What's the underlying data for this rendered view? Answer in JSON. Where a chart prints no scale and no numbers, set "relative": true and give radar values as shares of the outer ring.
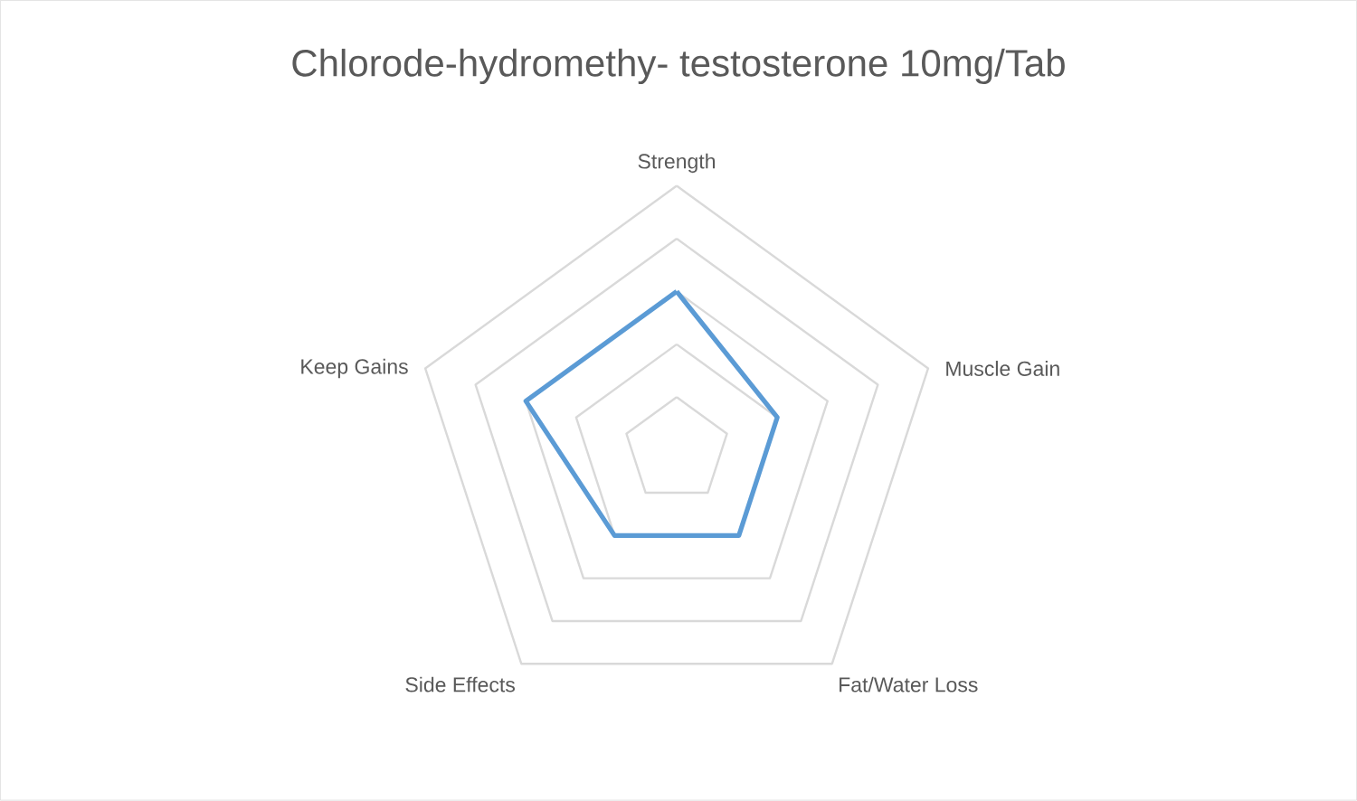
{
  "chart_data": {
    "type": "radar",
    "title": "Chlorode-hydromethy- testosterone 10mg/Tab",
    "categories": [
      "Strength",
      "Muscle Gain",
      "Fat/Water Loss",
      "Side Effects",
      "Keep Gains"
    ],
    "relative": true,
    "grid": true,
    "series": [
      {
        "color": "#5b9bd5",
        "values": [
          0.6,
          0.4,
          0.4,
          0.4,
          0.6
        ]
      }
    ]
  }
}
